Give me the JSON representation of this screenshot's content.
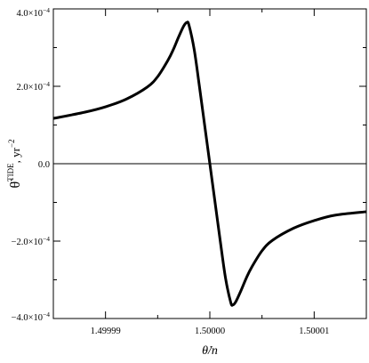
{
  "chart_data": {
    "type": "line",
    "xlabel": "θ̇/n",
    "ylabel": "θ̈",
    "ylabel_superscript": "TIDE",
    "ylabel_units": ", yr",
    "ylabel_units_exponent": "−2",
    "xlim": [
      1.499985,
      1.500015
    ],
    "ylim": [
      -0.0004,
      0.0004
    ],
    "x_ticks": [
      1.49999,
      1.5,
      1.50001
    ],
    "x_tick_labels": [
      "1.49999",
      "1.50000",
      "1.50001"
    ],
    "y_ticks": [
      -0.0004,
      -0.0002,
      0.0,
      0.0002,
      0.0004
    ],
    "y_tick_labels": [
      "−4.0×10",
      "−2.0×10",
      "0.0",
      "2.0×10",
      "4.0×10"
    ],
    "y_tick_exponents": [
      "−4",
      "−4",
      "",
      "−4",
      "−4"
    ],
    "grid": false,
    "zero_line": true,
    "series": [
      {
        "color": "#000000",
        "x": [
          1.499985,
          1.499988,
          1.49999,
          1.499992,
          1.499994,
          1.499995,
          1.499996,
          1.4999965,
          1.499997,
          1.4999975,
          1.4999978,
          1.499998,
          1.4999985,
          1.499999,
          1.4999995,
          1.5,
          1.5000005,
          1.500001,
          1.5000015,
          1.500002,
          1.5000022,
          1.5000025,
          1.500003,
          1.5000035,
          1.500004,
          1.500005,
          1.500006,
          1.500008,
          1.50001,
          1.500012,
          1.500015
        ],
        "y": [
          0.000117,
          0.000133,
          0.000147,
          0.000167,
          0.000198,
          0.000225,
          0.000268,
          0.000295,
          0.000327,
          0.000356,
          0.000365,
          0.000358,
          0.000295,
          0.0002,
          0.0001,
          0.0,
          -0.0001,
          -0.0002,
          -0.000295,
          -0.000358,
          -0.000365,
          -0.000356,
          -0.000327,
          -0.000295,
          -0.000268,
          -0.000225,
          -0.000198,
          -0.000167,
          -0.000147,
          -0.000133,
          -0.000124
        ]
      }
    ]
  }
}
